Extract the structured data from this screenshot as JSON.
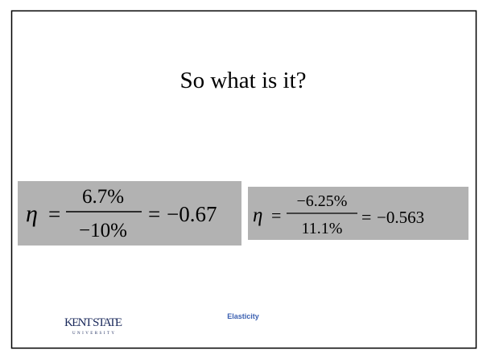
{
  "slide": {
    "title": "So what is it?",
    "equations": [
      {
        "symbol": "η",
        "equals": "=",
        "numerator": "6.7%",
        "denominator": "−10%",
        "result": "−0.67"
      },
      {
        "symbol": "η",
        "equals": "=",
        "numerator": "−6.25%",
        "denominator": "11.1%",
        "result": "−0.563"
      }
    ],
    "footer": {
      "text": "Elasticity",
      "logo": "KENT STATE",
      "logo_sub": "UNIVERSITY"
    }
  }
}
